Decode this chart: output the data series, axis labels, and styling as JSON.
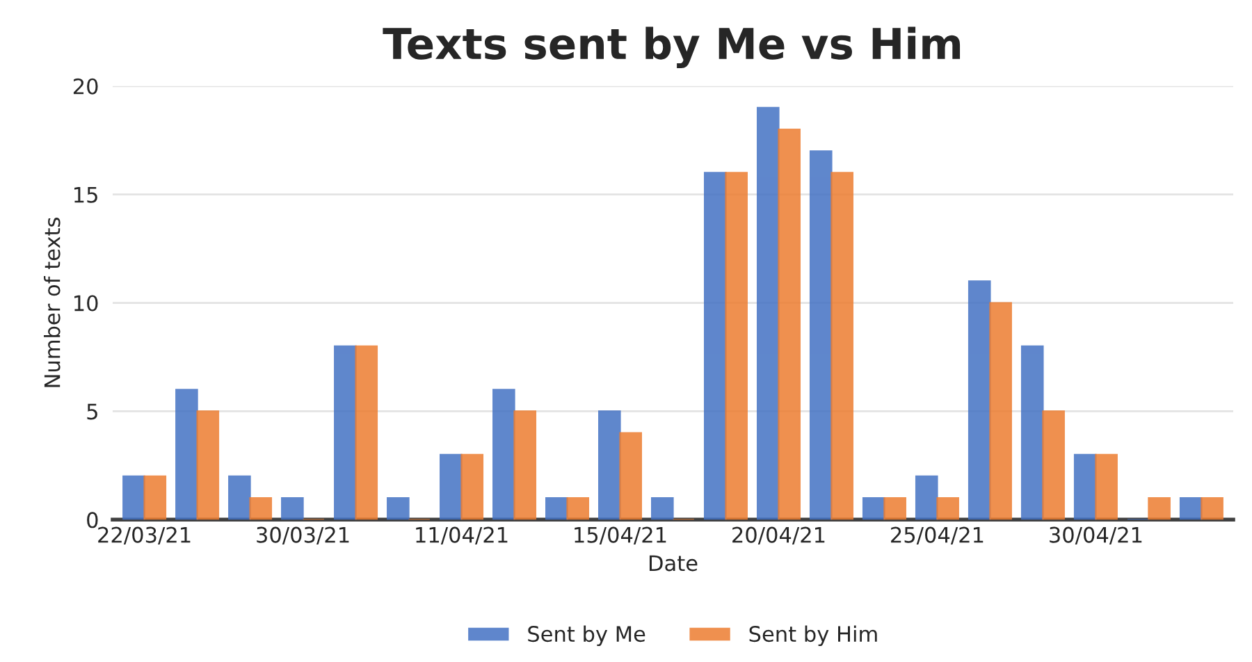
{
  "chart_data": {
    "type": "bar",
    "title": "Texts sent by Me vs Him",
    "xlabel": "Date",
    "ylabel": "Number of texts",
    "categories": [
      "22/03/21",
      null,
      null,
      "30/03/21",
      null,
      null,
      "11/04/21",
      null,
      null,
      "15/04/21",
      null,
      null,
      "20/04/21",
      null,
      null,
      "25/04/21",
      null,
      null,
      "30/04/21",
      null,
      null
    ],
    "series": [
      {
        "name": "Sent by Me",
        "color": "#4472c4",
        "values": [
          2,
          6,
          2,
          1,
          8,
          1,
          3,
          6,
          1,
          5,
          1,
          16,
          19,
          17,
          1,
          2,
          11,
          8,
          3,
          0,
          1
        ]
      },
      {
        "name": "Sent by Him",
        "color": "#ed7d31",
        "values": [
          2,
          5,
          1,
          0,
          8,
          0,
          3,
          5,
          1,
          4,
          0,
          16,
          18,
          16,
          1,
          1,
          10,
          5,
          3,
          1,
          1
        ]
      }
    ],
    "ylim": [
      0,
      20
    ],
    "yticks": [
      0,
      5,
      10,
      15,
      20
    ],
    "grid": "y",
    "legend": "bottom"
  }
}
